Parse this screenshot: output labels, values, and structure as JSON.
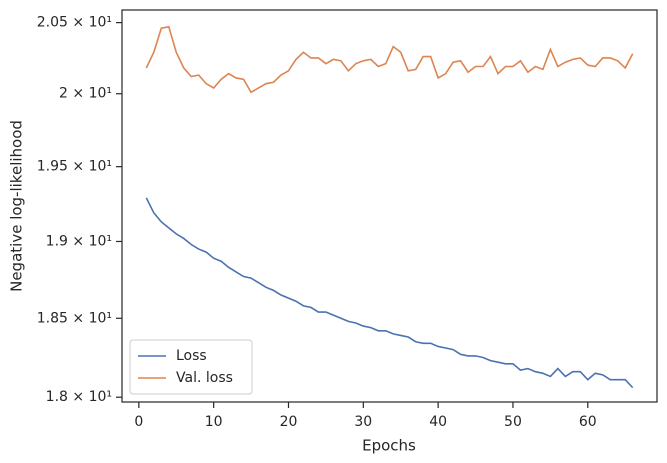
{
  "chart_data": {
    "type": "line",
    "xlabel": "Epochs",
    "ylabel": "Negative log-likelihood",
    "x": [
      1,
      2,
      3,
      4,
      5,
      6,
      7,
      8,
      9,
      10,
      11,
      12,
      13,
      14,
      15,
      16,
      17,
      18,
      19,
      20,
      21,
      22,
      23,
      24,
      25,
      26,
      27,
      28,
      29,
      30,
      31,
      32,
      33,
      34,
      35,
      36,
      37,
      38,
      39,
      40,
      41,
      42,
      43,
      44,
      45,
      46,
      47,
      48,
      49,
      50,
      51,
      52,
      53,
      54,
      55,
      56,
      57,
      58,
      59,
      60,
      61,
      62,
      63,
      64,
      65,
      66
    ],
    "series": [
      {
        "name": "Loss",
        "color": "#4c72b0",
        "values": [
          19.29,
          19.19,
          19.13,
          19.09,
          19.05,
          19.02,
          18.98,
          18.95,
          18.93,
          18.89,
          18.87,
          18.83,
          18.8,
          18.77,
          18.76,
          18.73,
          18.7,
          18.68,
          18.65,
          18.63,
          18.61,
          18.58,
          18.57,
          18.54,
          18.54,
          18.52,
          18.5,
          18.48,
          18.47,
          18.45,
          18.44,
          18.42,
          18.42,
          18.4,
          18.39,
          18.38,
          18.35,
          18.34,
          18.34,
          18.32,
          18.31,
          18.3,
          18.27,
          18.26,
          18.26,
          18.25,
          18.23,
          18.22,
          18.21,
          18.21,
          18.17,
          18.18,
          18.16,
          18.15,
          18.13,
          18.18,
          18.13,
          18.16,
          18.16,
          18.11,
          18.15,
          18.14,
          18.11,
          18.11,
          18.11,
          18.06
        ]
      },
      {
        "name": "Val. loss",
        "color": "#dd8452",
        "values": [
          20.18,
          20.29,
          20.46,
          20.47,
          20.29,
          20.18,
          20.12,
          20.13,
          20.07,
          20.04,
          20.1,
          20.14,
          20.11,
          20.1,
          20.01,
          20.04,
          20.07,
          20.08,
          20.13,
          20.16,
          20.24,
          20.29,
          20.25,
          20.25,
          20.21,
          20.24,
          20.23,
          20.16,
          20.21,
          20.23,
          20.24,
          20.19,
          20.21,
          20.33,
          20.29,
          20.16,
          20.17,
          20.26,
          20.26,
          20.11,
          20.14,
          20.22,
          20.23,
          20.15,
          20.19,
          20.19,
          20.26,
          20.14,
          20.19,
          20.19,
          20.23,
          20.15,
          20.19,
          20.17,
          20.31,
          20.19,
          20.22,
          20.24,
          20.25,
          20.2,
          20.19,
          20.25,
          20.25,
          20.23,
          20.18,
          20.28
        ]
      }
    ],
    "xlim": [
      -2.25,
      69.25
    ],
    "xticks": [
      0,
      10,
      20,
      30,
      40,
      50,
      60
    ],
    "ylim": [
      17.97,
      20.59
    ],
    "ylog": true,
    "yticks": [
      {
        "value": 18,
        "label": "1.8 × 10¹"
      },
      {
        "value": 18.5,
        "label": "1.85 × 10¹"
      },
      {
        "value": 19,
        "label": "1.9 × 10¹"
      },
      {
        "value": 19.5,
        "label": "1.95 × 10¹"
      },
      {
        "value": 20,
        "label": "2 × 10¹"
      },
      {
        "value": 20.5,
        "label": "2.05 × 10¹"
      }
    ],
    "grid": false,
    "legend": "lower left"
  }
}
